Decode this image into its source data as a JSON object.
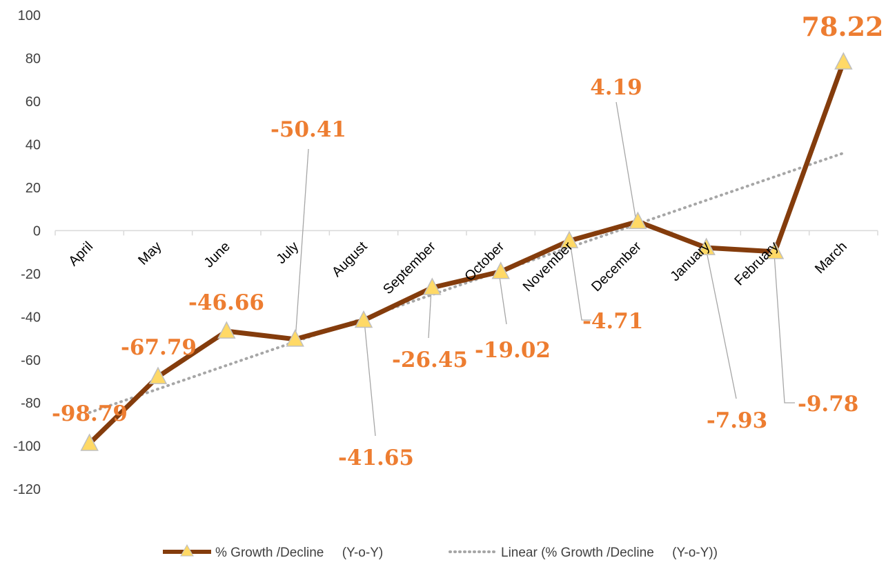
{
  "chart_data": {
    "type": "line",
    "categories": [
      "April",
      "May",
      "June",
      "July",
      "August",
      "September",
      "October",
      "November",
      "December",
      "January",
      "February",
      "March"
    ],
    "series": [
      {
        "name": "% Growth /Decline     (Y-o-Y)",
        "values": [
          -98.79,
          -67.79,
          -46.66,
          -50.41,
          -41.65,
          -26.45,
          -19.02,
          -4.71,
          4.19,
          -7.93,
          -9.78,
          78.22
        ],
        "labels": [
          "-98.79",
          "-67.79",
          "-46.66",
          "-50.41",
          "-41.65",
          "-26.45",
          "-19.02",
          "-4.71",
          "4.19",
          "-7.93",
          "-9.78",
          "78.22"
        ],
        "color": "#843C0C",
        "marker": "triangle",
        "marker_color": "#FFD966"
      }
    ],
    "trendline": {
      "name": "Linear (% Growth /Decline     (Y-o-Y))",
      "type": "linear",
      "color": "#A6A6A6",
      "style": "dotted"
    },
    "yticks": [
      "100",
      "80",
      "60",
      "40",
      "20",
      "0",
      "-20",
      "-40",
      "-60",
      "-80",
      "-100",
      "-120"
    ],
    "ylim": [
      -120,
      100
    ],
    "label_color": "#ED7D31",
    "grid": false,
    "legend_position": "bottom"
  }
}
